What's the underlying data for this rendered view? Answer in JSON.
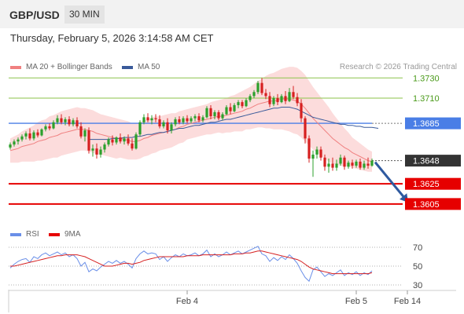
{
  "header": {
    "pair": "GBP/USD",
    "timeframe": "30 MIN",
    "datetime": "Thursday, February 5, 2026 3:14:58 AM CET"
  },
  "legend": {
    "ma20_label": "MA 20 + Bollinger Bands",
    "ma50_label": "MA 50",
    "credit": "Research © 2026 Trading Central",
    "rsi_label": "RSI",
    "ma9_label": "9MA"
  },
  "colors": {
    "up": "#2ca02c",
    "down": "#d62020",
    "bollinger": "#fbd0d0",
    "ma20": "#f08080",
    "ma50": "#3a5a9a",
    "resistance": "#8bc34a",
    "pivot": "#4a7ee6",
    "support": "#e60000",
    "last": "#333333",
    "arrow": "#2f5aa0",
    "rsi": "#6a8fe8",
    "rsi_ma": "#d62020"
  },
  "levels": [
    {
      "name": "resistance-2",
      "value": 1.373,
      "label": "1.3730",
      "type": "resistance"
    },
    {
      "name": "resistance-1",
      "value": 1.371,
      "label": "1.3710",
      "type": "resistance"
    },
    {
      "name": "pivot",
      "value": 1.3685,
      "label": "1.3685",
      "type": "pivot"
    },
    {
      "name": "last-price",
      "value": 1.3648,
      "label": "1.3648",
      "type": "last"
    },
    {
      "name": "support-1",
      "value": 1.3625,
      "label": "1.3625",
      "type": "support"
    },
    {
      "name": "support-2",
      "value": 1.3605,
      "label": "1.3605",
      "type": "support"
    }
  ],
  "chart_data": {
    "type": "candlestick",
    "price_range": [
      1.358,
      1.3745
    ],
    "rsi_range": [
      20,
      80
    ],
    "rsi_ticks": [
      70,
      50,
      30
    ],
    "x_labels": [
      {
        "label": "Feb 4",
        "index": 45
      },
      {
        "label": "Feb 5",
        "index": 88
      },
      {
        "label": "Feb 14",
        "index": 101
      }
    ],
    "candles": [
      [
        1.3661,
        1.3666,
        1.3659,
        1.3664
      ],
      [
        1.3664,
        1.3669,
        1.3662,
        1.3667
      ],
      [
        1.3667,
        1.3671,
        1.3664,
        1.3669
      ],
      [
        1.3669,
        1.3674,
        1.3667,
        1.3672
      ],
      [
        1.3672,
        1.3677,
        1.3669,
        1.3675
      ],
      [
        1.3675,
        1.368,
        1.3668,
        1.367
      ],
      [
        1.367,
        1.3678,
        1.3668,
        1.3676
      ],
      [
        1.3676,
        1.3679,
        1.3671,
        1.3673
      ],
      [
        1.3673,
        1.368,
        1.3672,
        1.3679
      ],
      [
        1.3679,
        1.3684,
        1.3677,
        1.3682
      ],
      [
        1.3682,
        1.3685,
        1.3678,
        1.368
      ],
      [
        1.368,
        1.3688,
        1.3679,
        1.3686
      ],
      [
        1.3686,
        1.3693,
        1.3684,
        1.369
      ],
      [
        1.369,
        1.3694,
        1.3684,
        1.3686
      ],
      [
        1.3686,
        1.3691,
        1.3683,
        1.3689
      ],
      [
        1.3689,
        1.3692,
        1.3682,
        1.3684
      ],
      [
        1.3684,
        1.369,
        1.3682,
        1.3688
      ],
      [
        1.3688,
        1.3691,
        1.368,
        1.3682
      ],
      [
        1.3682,
        1.3686,
        1.367,
        1.3672
      ],
      [
        1.3672,
        1.368,
        1.3667,
        1.3678
      ],
      [
        1.3678,
        1.3681,
        1.3655,
        1.3658
      ],
      [
        1.3658,
        1.3664,
        1.3652,
        1.366
      ],
      [
        1.366,
        1.3665,
        1.365,
        1.3654
      ],
      [
        1.3654,
        1.3662,
        1.3651,
        1.3659
      ],
      [
        1.3659,
        1.3666,
        1.3656,
        1.3664
      ],
      [
        1.3664,
        1.3671,
        1.3662,
        1.3669
      ],
      [
        1.3669,
        1.3673,
        1.3663,
        1.3666
      ],
      [
        1.3666,
        1.3672,
        1.3664,
        1.3671
      ],
      [
        1.3671,
        1.3675,
        1.3665,
        1.3667
      ],
      [
        1.3667,
        1.3672,
        1.3664,
        1.367
      ],
      [
        1.367,
        1.3674,
        1.3663,
        1.3665
      ],
      [
        1.3665,
        1.367,
        1.3658,
        1.366
      ],
      [
        1.366,
        1.3676,
        1.3659,
        1.3674
      ],
      [
        1.3674,
        1.3688,
        1.3672,
        1.3686
      ],
      [
        1.3686,
        1.3694,
        1.3684,
        1.3691
      ],
      [
        1.3691,
        1.3695,
        1.3686,
        1.3688
      ],
      [
        1.3688,
        1.3693,
        1.3684,
        1.369
      ],
      [
        1.369,
        1.3694,
        1.3686,
        1.3689
      ],
      [
        1.3689,
        1.3693,
        1.368,
        1.3682
      ],
      [
        1.3682,
        1.3688,
        1.368,
        1.3686
      ],
      [
        1.3686,
        1.369,
        1.3675,
        1.3678
      ],
      [
        1.3678,
        1.3686,
        1.3675,
        1.3684
      ],
      [
        1.3684,
        1.3691,
        1.3682,
        1.3689
      ],
      [
        1.3689,
        1.3692,
        1.3684,
        1.3686
      ],
      [
        1.3686,
        1.3692,
        1.3684,
        1.369
      ],
      [
        1.369,
        1.3693,
        1.3685,
        1.3687
      ],
      [
        1.3687,
        1.3692,
        1.3685,
        1.369
      ],
      [
        1.369,
        1.3694,
        1.3687,
        1.3692
      ],
      [
        1.3692,
        1.3695,
        1.3686,
        1.3688
      ],
      [
        1.3688,
        1.3693,
        1.3686,
        1.3691
      ],
      [
        1.3691,
        1.3702,
        1.369,
        1.37
      ],
      [
        1.37,
        1.3703,
        1.3689,
        1.3692
      ],
      [
        1.3692,
        1.3698,
        1.3689,
        1.3696
      ],
      [
        1.3696,
        1.3698,
        1.3688,
        1.369
      ],
      [
        1.369,
        1.3696,
        1.3688,
        1.3694
      ],
      [
        1.3694,
        1.3703,
        1.3693,
        1.3701
      ],
      [
        1.3701,
        1.3705,
        1.3694,
        1.3697
      ],
      [
        1.3697,
        1.3705,
        1.3696,
        1.3703
      ],
      [
        1.3703,
        1.3708,
        1.37,
        1.3706
      ],
      [
        1.3706,
        1.3708,
        1.37,
        1.3702
      ],
      [
        1.3702,
        1.371,
        1.3701,
        1.3708
      ],
      [
        1.3708,
        1.3714,
        1.3706,
        1.3712
      ],
      [
        1.3712,
        1.3718,
        1.371,
        1.3716
      ],
      [
        1.3716,
        1.3727,
        1.3714,
        1.3725
      ],
      [
        1.3725,
        1.373,
        1.3713,
        1.3715
      ],
      [
        1.3715,
        1.3719,
        1.3709,
        1.3712
      ],
      [
        1.3712,
        1.3716,
        1.3701,
        1.3704
      ],
      [
        1.3704,
        1.3712,
        1.3702,
        1.371
      ],
      [
        1.371,
        1.3714,
        1.3703,
        1.3706
      ],
      [
        1.3706,
        1.3714,
        1.3705,
        1.3712
      ],
      [
        1.3712,
        1.3717,
        1.3704,
        1.3707
      ],
      [
        1.3707,
        1.372,
        1.3706,
        1.3716
      ],
      [
        1.3716,
        1.3722,
        1.3709,
        1.3711
      ],
      [
        1.3711,
        1.3715,
        1.3702,
        1.3705
      ],
      [
        1.3705,
        1.3709,
        1.3686,
        1.369
      ],
      [
        1.369,
        1.3692,
        1.3665,
        1.367
      ],
      [
        1.367,
        1.3673,
        1.3646,
        1.365
      ],
      [
        1.365,
        1.3658,
        1.3632,
        1.3654
      ],
      [
        1.3654,
        1.3662,
        1.365,
        1.3659
      ],
      [
        1.3659,
        1.3662,
        1.3648,
        1.3651
      ],
      [
        1.3651,
        1.3654,
        1.3638,
        1.3642
      ],
      [
        1.3642,
        1.365,
        1.3636,
        1.3645
      ],
      [
        1.3645,
        1.3651,
        1.3638,
        1.3641
      ],
      [
        1.3641,
        1.3649,
        1.3638,
        1.3645
      ],
      [
        1.3645,
        1.3654,
        1.3643,
        1.3651
      ],
      [
        1.3651,
        1.3653,
        1.3639,
        1.3642
      ],
      [
        1.3642,
        1.3648,
        1.364,
        1.3646
      ],
      [
        1.3646,
        1.3649,
        1.364,
        1.3643
      ],
      [
        1.3643,
        1.3649,
        1.3641,
        1.3647
      ],
      [
        1.3647,
        1.365,
        1.3639,
        1.3641
      ],
      [
        1.3641,
        1.3648,
        1.3639,
        1.3645
      ],
      [
        1.3645,
        1.3651,
        1.364,
        1.3643
      ],
      [
        1.3643,
        1.365,
        1.3642,
        1.3648
      ]
    ],
    "ma20": [
      1.3658,
      1.3659,
      1.366,
      1.3662,
      1.3663,
      1.3664,
      1.3665,
      1.3667,
      1.3668,
      1.3669,
      1.3671,
      1.3672,
      1.3673,
      1.3675,
      1.3676,
      1.3677,
      1.3678,
      1.3679,
      1.3679,
      1.3679,
      1.3678,
      1.3677,
      1.3675,
      1.3674,
      1.3673,
      1.3672,
      1.3671,
      1.367,
      1.367,
      1.3669,
      1.3668,
      1.3667,
      1.3667,
      1.3668,
      1.367,
      1.3671,
      1.3673,
      1.3674,
      1.3675,
      1.3676,
      1.3677,
      1.3678,
      1.3679,
      1.3681,
      1.3682,
      1.3684,
      1.3685,
      1.3686,
      1.3687,
      1.3688,
      1.3689,
      1.369,
      1.3691,
      1.3692,
      1.3692,
      1.3693,
      1.3694,
      1.3695,
      1.3696,
      1.3697,
      1.3699,
      1.37,
      1.3702,
      1.3704,
      1.3705,
      1.3706,
      1.3707,
      1.3707,
      1.3708,
      1.3709,
      1.3709,
      1.3709,
      1.3708,
      1.3707,
      1.3704,
      1.37,
      1.3695,
      1.369,
      1.3686,
      1.3682,
      1.3678,
      1.3674,
      1.367,
      1.3667,
      1.3664,
      1.3661,
      1.3659,
      1.3656,
      1.3654,
      1.3652,
      1.365,
      1.3648,
      1.3647
    ],
    "ma50": [
      null,
      null,
      null,
      null,
      null,
      null,
      null,
      null,
      null,
      null,
      null,
      null,
      null,
      null,
      null,
      null,
      null,
      null,
      null,
      null,
      1.3669,
      1.3669,
      1.3669,
      1.3669,
      1.3669,
      1.3669,
      1.367,
      1.367,
      1.367,
      1.3671,
      1.3671,
      1.3671,
      1.3672,
      1.3672,
      1.3673,
      1.3674,
      1.3674,
      1.3675,
      1.3676,
      1.3676,
      1.3677,
      1.3678,
      1.3679,
      1.368,
      1.368,
      1.3681,
      1.3682,
      1.3683,
      1.3683,
      1.3684,
      1.3685,
      1.3686,
      1.3686,
      1.3687,
      1.3688,
      1.3689,
      1.3689,
      1.369,
      1.3691,
      1.3692,
      1.3693,
      1.3694,
      1.3695,
      1.3696,
      1.3697,
      1.3698,
      1.3699,
      1.37,
      1.37,
      1.3701,
      1.3701,
      1.3701,
      1.37,
      1.3699,
      1.3697,
      1.3695,
      1.3693,
      1.3691,
      1.369,
      1.3689,
      1.3688,
      1.3687,
      1.3686,
      1.3685,
      1.3684,
      1.3684,
      1.3683,
      1.3683,
      1.3682,
      1.3682,
      1.3681,
      1.3681,
      1.3681
    ],
    "bb_width": [
      0.0012,
      0.0013,
      0.0014,
      0.0015,
      0.0016,
      0.0017,
      0.0018,
      0.0019,
      0.002,
      0.002,
      0.0021,
      0.0021,
      0.0022,
      0.0022,
      0.0022,
      0.0022,
      0.0022,
      0.0022,
      0.0021,
      0.0021,
      0.0021,
      0.0021,
      0.0021,
      0.002,
      0.002,
      0.002,
      0.002,
      0.002,
      0.0019,
      0.0019,
      0.0019,
      0.0018,
      0.0018,
      0.0018,
      0.0018,
      0.0018,
      0.0018,
      0.0018,
      0.0017,
      0.0017,
      0.0017,
      0.0017,
      0.0016,
      0.0016,
      0.0016,
      0.0015,
      0.0015,
      0.0015,
      0.0015,
      0.0015,
      0.0015,
      0.0016,
      0.0016,
      0.0016,
      0.0017,
      0.0017,
      0.0018,
      0.0018,
      0.0019,
      0.002,
      0.002,
      0.0021,
      0.0022,
      0.0023,
      0.0024,
      0.0026,
      0.0027,
      0.0028,
      0.0029,
      0.003,
      0.0031,
      0.0032,
      0.0033,
      0.0033,
      0.0033,
      0.0033,
      0.0032,
      0.0031,
      0.003,
      0.0029,
      0.0028,
      0.0027,
      0.0025,
      0.0023,
      0.0021,
      0.0019,
      0.0017,
      0.0015,
      0.0014,
      0.0013,
      0.0012,
      0.0011,
      0.001
    ],
    "forecast": {
      "from_index": 92,
      "from_value": 1.3648,
      "to_index": 100,
      "to_value": 1.3605
    },
    "rsi": [
      48,
      52,
      55,
      57,
      58,
      54,
      60,
      58,
      62,
      64,
      61,
      63,
      65,
      62,
      64,
      60,
      62,
      58,
      50,
      54,
      44,
      47,
      45,
      49,
      52,
      55,
      53,
      56,
      53,
      55,
      52,
      48,
      58,
      63,
      66,
      63,
      64,
      63,
      57,
      60,
      55,
      59,
      62,
      60,
      63,
      61,
      62,
      64,
      61,
      63,
      67,
      60,
      63,
      60,
      62,
      65,
      62,
      64,
      66,
      63,
      65,
      67,
      69,
      71,
      63,
      61,
      55,
      59,
      56,
      60,
      57,
      62,
      58,
      53,
      45,
      38,
      34,
      46,
      49,
      44,
      39,
      42,
      40,
      43,
      46,
      40,
      43,
      41,
      44,
      40,
      43,
      41,
      45
    ],
    "rsi_ma": [
      50,
      50,
      51,
      52,
      53,
      54,
      55,
      56,
      57,
      58,
      59,
      60,
      61,
      61,
      62,
      62,
      62,
      62,
      61,
      60,
      58,
      56,
      54,
      52,
      50,
      50,
      50,
      51,
      52,
      53,
      53,
      52,
      53,
      54,
      56,
      57,
      58,
      59,
      60,
      60,
      60,
      60,
      60,
      60,
      60,
      61,
      61,
      61,
      61,
      62,
      62,
      62,
      62,
      62,
      62,
      62,
      62,
      63,
      63,
      63,
      64,
      64,
      65,
      66,
      66,
      65,
      64,
      63,
      62,
      61,
      60,
      59,
      58,
      57,
      55,
      52,
      49,
      47,
      46,
      45,
      44,
      43,
      42,
      42,
      42,
      42,
      42,
      42,
      42,
      42,
      42,
      42,
      43
    ]
  }
}
